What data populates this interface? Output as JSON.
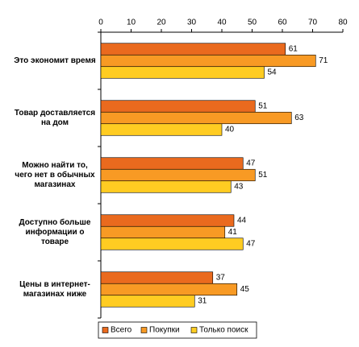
{
  "chart_data": {
    "type": "barh",
    "categories": [
      "Это экономит время",
      "Товар доставляется на дом",
      "Можно найти то, чего нет в обычных магазинах",
      "Доступно больше информации о товаре",
      "Цены в интернет-магазинах ниже"
    ],
    "series": [
      {
        "name": "Всего",
        "color": "#ea6a1e",
        "values": [
          61,
          51,
          47,
          44,
          37
        ]
      },
      {
        "name": "Покупки",
        "color": "#f89a24",
        "values": [
          71,
          63,
          51,
          41,
          45
        ]
      },
      {
        "name": "Только поиск",
        "color": "#ffcc22",
        "values": [
          54,
          40,
          43,
          47,
          31
        ]
      }
    ],
    "xlim": [
      0,
      80
    ],
    "xticks": [
      0,
      10,
      20,
      30,
      40,
      50,
      60,
      70,
      80
    ],
    "legend": "bottom"
  }
}
